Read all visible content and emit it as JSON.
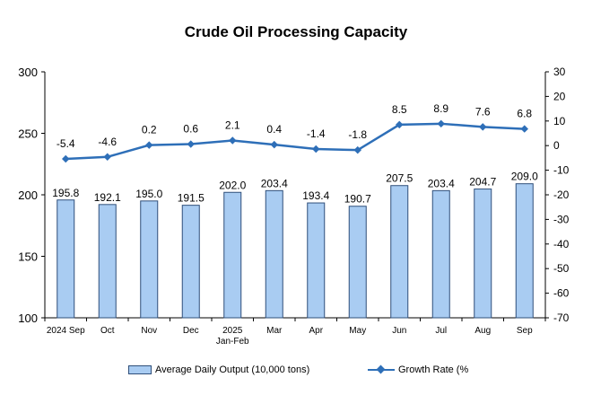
{
  "chart_data": {
    "type": "bar+line",
    "title": "Crude Oil Processing Capacity",
    "categories": [
      "2024 Sep",
      "Oct",
      "Nov",
      "Dec",
      "2025 Jan-Feb",
      "Mar",
      "Apr",
      "May",
      "Jun",
      "Jul",
      "Aug",
      "Sep"
    ],
    "category_lines": [
      [
        "2024 Sep"
      ],
      [
        "Oct"
      ],
      [
        "Nov"
      ],
      [
        "Dec"
      ],
      [
        "2025",
        "Jan-Feb"
      ],
      [
        "Mar"
      ],
      [
        "Apr"
      ],
      [
        "May"
      ],
      [
        "Jun"
      ],
      [
        "Jul"
      ],
      [
        "Aug"
      ],
      [
        "Sep"
      ]
    ],
    "series": [
      {
        "name": "Average Daily Output (10,000 tons)",
        "type": "bar",
        "axis": "left",
        "values": [
          195.8,
          192.1,
          195.0,
          191.5,
          202.0,
          203.4,
          193.4,
          190.7,
          207.5,
          203.4,
          204.7,
          209.0
        ],
        "labels": [
          "195.8",
          "192.1",
          "195.0",
          "191.5",
          "202.0",
          "203.4",
          "193.4",
          "190.7",
          "207.5",
          "203.4",
          "204.7",
          "209.0"
        ]
      },
      {
        "name": "Growth Rate (%)",
        "type": "line",
        "axis": "right",
        "values": [
          -5.4,
          -4.6,
          0.2,
          0.6,
          2.1,
          0.4,
          -1.4,
          -1.8,
          8.5,
          8.9,
          7.6,
          6.8
        ],
        "labels": [
          "-5.4",
          "-4.6",
          "0.2",
          "0.6",
          "2.1",
          "0.4",
          "-1.4",
          "-1.8",
          "8.5",
          "8.9",
          "7.6",
          "6.8"
        ]
      }
    ],
    "y_left": {
      "range": [
        100,
        300
      ],
      "ticks": [
        100,
        150,
        200,
        250,
        300
      ]
    },
    "y_right": {
      "range": [
        -70,
        30
      ],
      "ticks": [
        30,
        20,
        10,
        0,
        -10,
        -20,
        -30,
        -40,
        -50,
        -60,
        -70
      ]
    },
    "legend_placement": "bottom",
    "colors": {
      "bar_fill": "#a9ccf2",
      "bar_stroke": "#2f4f7a",
      "line": "#2e6fb8"
    }
  },
  "legend": {
    "bar_label": "Average Daily Output (10,000 tons)",
    "line_label": "Growth Rate (%"
  }
}
